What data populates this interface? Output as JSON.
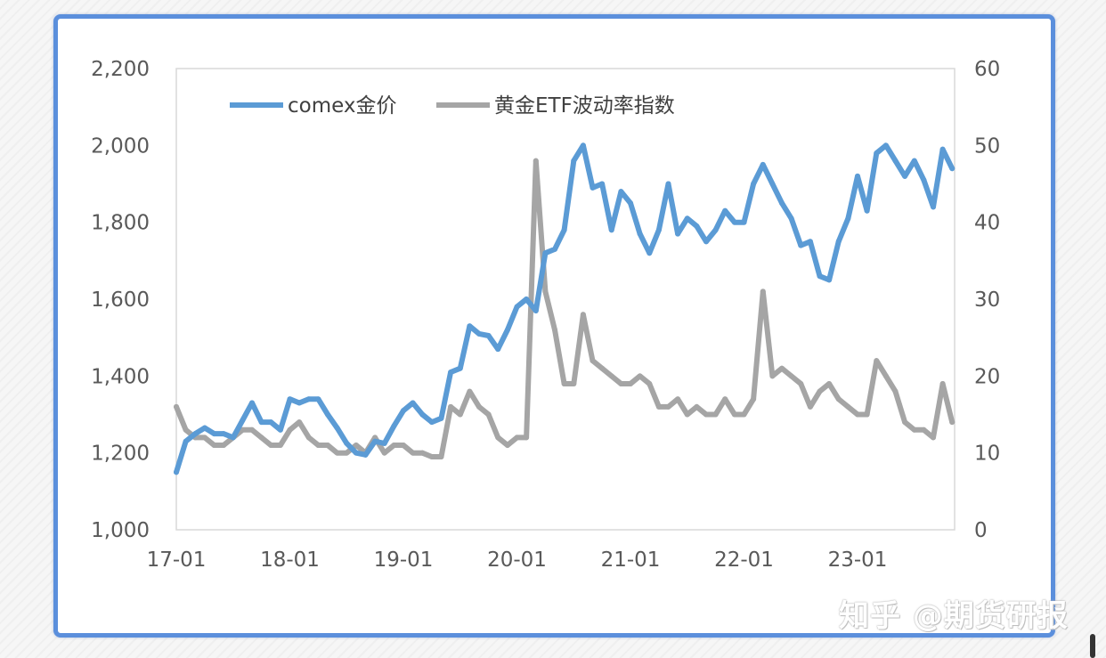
{
  "chart_data": {
    "type": "line",
    "x_tick_labels": [
      "17-01",
      "18-01",
      "19-01",
      "20-01",
      "21-01",
      "22-01",
      "23-01"
    ],
    "y_left_tick_labels": [
      "1,000",
      "1,200",
      "1,400",
      "1,600",
      "1,800",
      "2,000",
      "2,200"
    ],
    "y_right_tick_labels": [
      "0",
      "10",
      "20",
      "30",
      "40",
      "50",
      "60"
    ],
    "y_left_range": [
      1000,
      2200
    ],
    "y_right_range": [
      0,
      60
    ],
    "x_range": [
      "2017-01",
      "2023-11"
    ],
    "legend_position": "top-left, inside plot",
    "grid": false,
    "series": [
      {
        "name": "comex金价",
        "axis": "left",
        "color": "#5b9bd5",
        "points": [
          [
            "2017-01",
            1150
          ],
          [
            "2017-02",
            1230
          ],
          [
            "2017-03",
            1250
          ],
          [
            "2017-04",
            1265
          ],
          [
            "2017-05",
            1250
          ],
          [
            "2017-06",
            1250
          ],
          [
            "2017-07",
            1240
          ],
          [
            "2017-08",
            1285
          ],
          [
            "2017-09",
            1330
          ],
          [
            "2017-10",
            1280
          ],
          [
            "2017-11",
            1280
          ],
          [
            "2017-12",
            1260
          ],
          [
            "2018-01",
            1340
          ],
          [
            "2018-02",
            1330
          ],
          [
            "2018-03",
            1340
          ],
          [
            "2018-04",
            1340
          ],
          [
            "2018-05",
            1300
          ],
          [
            "2018-06",
            1265
          ],
          [
            "2018-07",
            1225
          ],
          [
            "2018-08",
            1200
          ],
          [
            "2018-09",
            1195
          ],
          [
            "2018-10",
            1230
          ],
          [
            "2018-11",
            1225
          ],
          [
            "2018-12",
            1270
          ],
          [
            "2019-01",
            1310
          ],
          [
            "2019-02",
            1330
          ],
          [
            "2019-03",
            1300
          ],
          [
            "2019-04",
            1280
          ],
          [
            "2019-05",
            1290
          ],
          [
            "2019-06",
            1410
          ],
          [
            "2019-07",
            1420
          ],
          [
            "2019-08",
            1530
          ],
          [
            "2019-09",
            1510
          ],
          [
            "2019-10",
            1505
          ],
          [
            "2019-11",
            1470
          ],
          [
            "2019-12",
            1520
          ],
          [
            "2020-01",
            1580
          ],
          [
            "2020-02",
            1600
          ],
          [
            "2020-03",
            1570
          ],
          [
            "2020-04",
            1720
          ],
          [
            "2020-05",
            1730
          ],
          [
            "2020-06",
            1780
          ],
          [
            "2020-07",
            1960
          ],
          [
            "2020-08",
            2000
          ],
          [
            "2020-09",
            1890
          ],
          [
            "2020-10",
            1900
          ],
          [
            "2020-11",
            1780
          ],
          [
            "2020-12",
            1880
          ],
          [
            "2021-01",
            1850
          ],
          [
            "2021-02",
            1770
          ],
          [
            "2021-03",
            1720
          ],
          [
            "2021-04",
            1780
          ],
          [
            "2021-05",
            1900
          ],
          [
            "2021-06",
            1770
          ],
          [
            "2021-07",
            1810
          ],
          [
            "2021-08",
            1790
          ],
          [
            "2021-09",
            1750
          ],
          [
            "2021-10",
            1780
          ],
          [
            "2021-11",
            1830
          ],
          [
            "2021-12",
            1800
          ],
          [
            "2022-01",
            1800
          ],
          [
            "2022-02",
            1900
          ],
          [
            "2022-03",
            1950
          ],
          [
            "2022-04",
            1900
          ],
          [
            "2022-05",
            1850
          ],
          [
            "2022-06",
            1810
          ],
          [
            "2022-07",
            1740
          ],
          [
            "2022-08",
            1750
          ],
          [
            "2022-09",
            1660
          ],
          [
            "2022-10",
            1650
          ],
          [
            "2022-11",
            1750
          ],
          [
            "2022-12",
            1810
          ],
          [
            "2023-01",
            1920
          ],
          [
            "2023-02",
            1830
          ],
          [
            "2023-03",
            1980
          ],
          [
            "2023-04",
            2000
          ],
          [
            "2023-05",
            1960
          ],
          [
            "2023-06",
            1920
          ],
          [
            "2023-07",
            1960
          ],
          [
            "2023-08",
            1910
          ],
          [
            "2023-09",
            1840
          ],
          [
            "2023-10",
            1990
          ],
          [
            "2023-11",
            1940
          ]
        ]
      },
      {
        "name": "黄金ETF波动率指数",
        "axis": "right",
        "color": "#a5a5a5",
        "points": [
          [
            "2017-01",
            16
          ],
          [
            "2017-02",
            13
          ],
          [
            "2017-03",
            12
          ],
          [
            "2017-04",
            12
          ],
          [
            "2017-05",
            11
          ],
          [
            "2017-06",
            11
          ],
          [
            "2017-07",
            12
          ],
          [
            "2017-08",
            13
          ],
          [
            "2017-09",
            13
          ],
          [
            "2017-10",
            12
          ],
          [
            "2017-11",
            11
          ],
          [
            "2017-12",
            11
          ],
          [
            "2018-01",
            13
          ],
          [
            "2018-02",
            14
          ],
          [
            "2018-03",
            12
          ],
          [
            "2018-04",
            11
          ],
          [
            "2018-05",
            11
          ],
          [
            "2018-06",
            10
          ],
          [
            "2018-07",
            10
          ],
          [
            "2018-08",
            11
          ],
          [
            "2018-09",
            10
          ],
          [
            "2018-10",
            12
          ],
          [
            "2018-11",
            10
          ],
          [
            "2018-12",
            11
          ],
          [
            "2019-01",
            11
          ],
          [
            "2019-02",
            10
          ],
          [
            "2019-03",
            10
          ],
          [
            "2019-04",
            9.5
          ],
          [
            "2019-05",
            9.5
          ],
          [
            "2019-06",
            16
          ],
          [
            "2019-07",
            15
          ],
          [
            "2019-08",
            18
          ],
          [
            "2019-09",
            16
          ],
          [
            "2019-10",
            15
          ],
          [
            "2019-11",
            12
          ],
          [
            "2019-12",
            11
          ],
          [
            "2020-01",
            12
          ],
          [
            "2020-02",
            12
          ],
          [
            "2020-03",
            48
          ],
          [
            "2020-04",
            31
          ],
          [
            "2020-05",
            26
          ],
          [
            "2020-06",
            19
          ],
          [
            "2020-07",
            19
          ],
          [
            "2020-08",
            28
          ],
          [
            "2020-09",
            22
          ],
          [
            "2020-10",
            21
          ],
          [
            "2020-11",
            20
          ],
          [
            "2020-12",
            19
          ],
          [
            "2021-01",
            19
          ],
          [
            "2021-02",
            20
          ],
          [
            "2021-03",
            19
          ],
          [
            "2021-04",
            16
          ],
          [
            "2021-05",
            16
          ],
          [
            "2021-06",
            17
          ],
          [
            "2021-07",
            15
          ],
          [
            "2021-08",
            16
          ],
          [
            "2021-09",
            15
          ],
          [
            "2021-10",
            15
          ],
          [
            "2021-11",
            17
          ],
          [
            "2021-12",
            15
          ],
          [
            "2022-01",
            15
          ],
          [
            "2022-02",
            17
          ],
          [
            "2022-03",
            31
          ],
          [
            "2022-04",
            20
          ],
          [
            "2022-05",
            21
          ],
          [
            "2022-06",
            20
          ],
          [
            "2022-07",
            19
          ],
          [
            "2022-08",
            16
          ],
          [
            "2022-09",
            18
          ],
          [
            "2022-10",
            19
          ],
          [
            "2022-11",
            17
          ],
          [
            "2022-12",
            16
          ],
          [
            "2023-01",
            15
          ],
          [
            "2023-02",
            15
          ],
          [
            "2023-03",
            22
          ],
          [
            "2023-04",
            20
          ],
          [
            "2023-05",
            18
          ],
          [
            "2023-06",
            14
          ],
          [
            "2023-07",
            13
          ],
          [
            "2023-08",
            13
          ],
          [
            "2023-09",
            12
          ],
          [
            "2023-10",
            19
          ],
          [
            "2023-11",
            14
          ]
        ]
      }
    ]
  },
  "watermark": "知乎 @期货研报"
}
